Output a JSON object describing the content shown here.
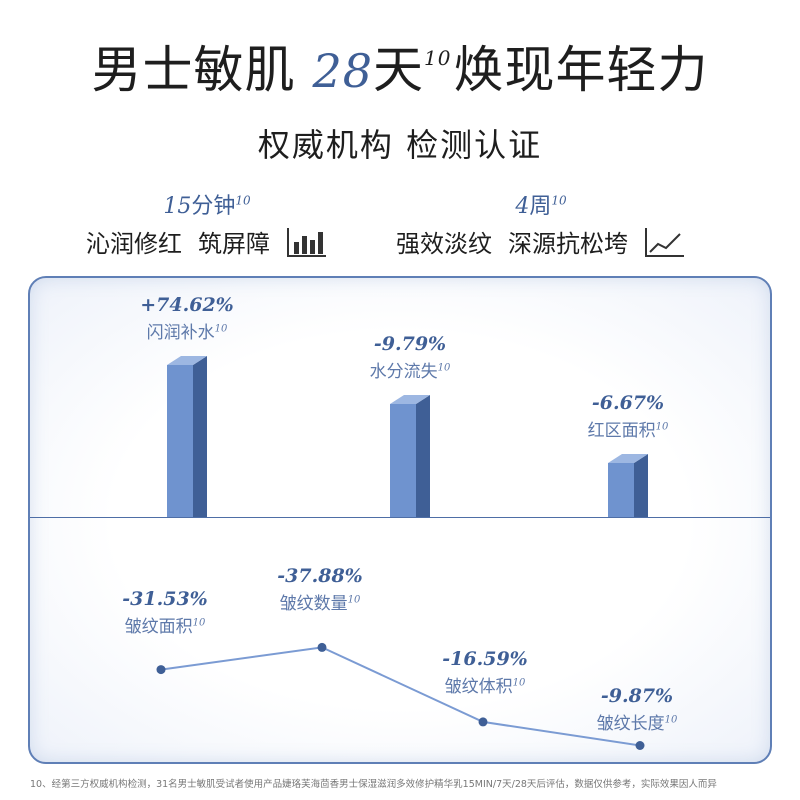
{
  "headline": {
    "part1": "男士敏肌",
    "num": "28",
    "part2": "天",
    "sup": "10",
    "part3": "焕现年轻力"
  },
  "subheadline": "权威机构 检测认证",
  "features": [
    {
      "duration_num": "15",
      "duration_unit": "分钟",
      "sup": "10",
      "line1": "沁润修红",
      "line2": "筑屏障",
      "icon": "bar-chart-icon"
    },
    {
      "duration_num": "4",
      "duration_unit": "周",
      "sup": "10",
      "line1": "强效淡纹",
      "line2": "深源抗松垮",
      "icon": "line-chart-icon"
    }
  ],
  "colors": {
    "accent": "#3f5f96",
    "bar_front": "#6f93cf",
    "bar_side": "#3f5f96",
    "line": "#7b9bd3",
    "dot": "#3f5f96"
  },
  "chart_data": [
    {
      "type": "bar",
      "categories": [
        "闪润补水",
        "水分流失",
        "红区面积"
      ],
      "values": [
        74.62,
        -9.79,
        -6.67
      ],
      "value_labels": [
        "+74.62%",
        "-9.79%",
        "-6.67%"
      ],
      "label_sup": "10",
      "bar_heights": [
        100,
        75,
        40
      ]
    },
    {
      "type": "line",
      "categories": [
        "皱纹面积",
        "皱纹数量",
        "皱纹体积",
        "皱纹长度"
      ],
      "values": [
        -31.53,
        -37.88,
        -16.59,
        -9.87
      ],
      "value_labels": [
        "-31.53%",
        "-37.88%",
        "-16.59%",
        "-9.87%"
      ],
      "label_sup": "10"
    }
  ],
  "footnote": "10、经第三方权威机构检测，31名男士敏肌受试者使用产品婕珞芙海茴香男士保湿滋润多效修护精华乳15MIN/7天/28天后评估，数据仅供参考，实际效果因人而异"
}
